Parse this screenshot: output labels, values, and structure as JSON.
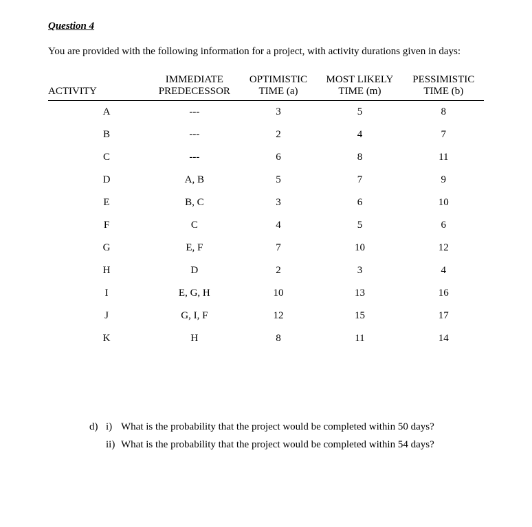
{
  "title": "Question 4",
  "intro": "You are provided with the following information for a project, with activity durations given in days:",
  "table": {
    "columns": [
      "ACTIVITY",
      "IMMEDIATE PREDECESSOR",
      "OPTIMISTIC TIME (a)",
      "MOST LIKELY TIME (m)",
      "PESSIMISTIC TIME (b)"
    ],
    "col_h1": "ACTIVITY",
    "col_h2a": "IMMEDIATE",
    "col_h2b": "PREDECESSOR",
    "col_h3a": "OPTIMISTIC",
    "col_h3b": "TIME (a)",
    "col_h4a": "MOST LIKELY",
    "col_h4b": "TIME (m)",
    "col_h5a": "PESSIMISTIC",
    "col_h5b": "TIME (b)",
    "rows": [
      {
        "activity": "A",
        "pred": "---",
        "a": "3",
        "m": "5",
        "b": "8"
      },
      {
        "activity": "B",
        "pred": "---",
        "a": "2",
        "m": "4",
        "b": "7"
      },
      {
        "activity": "C",
        "pred": "---",
        "a": "6",
        "m": "8",
        "b": "11"
      },
      {
        "activity": "D",
        "pred": "A, B",
        "a": "5",
        "m": "7",
        "b": "9"
      },
      {
        "activity": "E",
        "pred": "B, C",
        "a": "3",
        "m": "6",
        "b": "10"
      },
      {
        "activity": "F",
        "pred": "C",
        "a": "4",
        "m": "5",
        "b": "6"
      },
      {
        "activity": "G",
        "pred": "E, F",
        "a": "7",
        "m": "10",
        "b": "12"
      },
      {
        "activity": "H",
        "pred": "D",
        "a": "2",
        "m": "3",
        "b": "4"
      },
      {
        "activity": "I",
        "pred": "E, G, H",
        "a": "10",
        "m": "13",
        "b": "16"
      },
      {
        "activity": "J",
        "pred": "G, I, F",
        "a": "12",
        "m": "15",
        "b": "17"
      },
      {
        "activity": "K",
        "pred": "H",
        "a": "8",
        "m": "11",
        "b": "14"
      }
    ]
  },
  "part_d": {
    "marker": "d)",
    "i_marker": "i)",
    "i_text": "What is the probability that the project would be completed within 50 days?",
    "ii_marker": "ii)",
    "ii_text": "What is the probability that the project would be completed within 54 days?"
  }
}
